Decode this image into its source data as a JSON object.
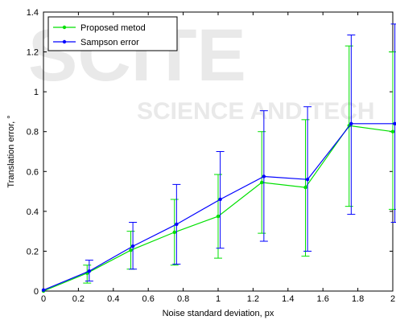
{
  "chart_data": {
    "type": "line",
    "xlabel": "Noise standard deviation, px",
    "ylabel": "Translation error, °",
    "xlim": [
      0,
      2
    ],
    "ylim": [
      0,
      1.4
    ],
    "xticks": [
      "0",
      "0.2",
      "0.4",
      "0.6",
      "0.8",
      "1",
      "1.2",
      "1.4",
      "1.6",
      "1.8",
      "2"
    ],
    "yticks": [
      "0",
      "0.2",
      "0.4",
      "0.6",
      "0.8",
      "1",
      "1.2",
      "1.4"
    ],
    "grid": false,
    "legend_position": "top-left",
    "x": [
      0,
      0.25,
      0.5,
      0.75,
      1.0,
      1.25,
      1.5,
      1.75,
      2.0
    ],
    "series": [
      {
        "name": "Proposed metod",
        "color": "#00e000",
        "values": [
          0.0,
          0.09,
          0.205,
          0.295,
          0.375,
          0.545,
          0.52,
          0.83,
          0.8
        ],
        "error_low": [
          0.0,
          0.04,
          0.11,
          0.13,
          0.165,
          0.29,
          0.175,
          0.425,
          0.41
        ],
        "error_high": [
          0.0,
          0.13,
          0.3,
          0.46,
          0.585,
          0.8,
          0.86,
          1.23,
          1.2
        ]
      },
      {
        "name": "Sampson error",
        "color": "#0000ff",
        "values": [
          0.005,
          0.1,
          0.225,
          0.335,
          0.46,
          0.575,
          0.56,
          0.84,
          0.84
        ],
        "error_low": [
          0.005,
          0.05,
          0.11,
          0.135,
          0.215,
          0.25,
          0.2,
          0.385,
          0.345
        ],
        "error_high": [
          0.005,
          0.155,
          0.345,
          0.535,
          0.7,
          0.905,
          0.925,
          1.285,
          1.34
        ]
      }
    ]
  }
}
